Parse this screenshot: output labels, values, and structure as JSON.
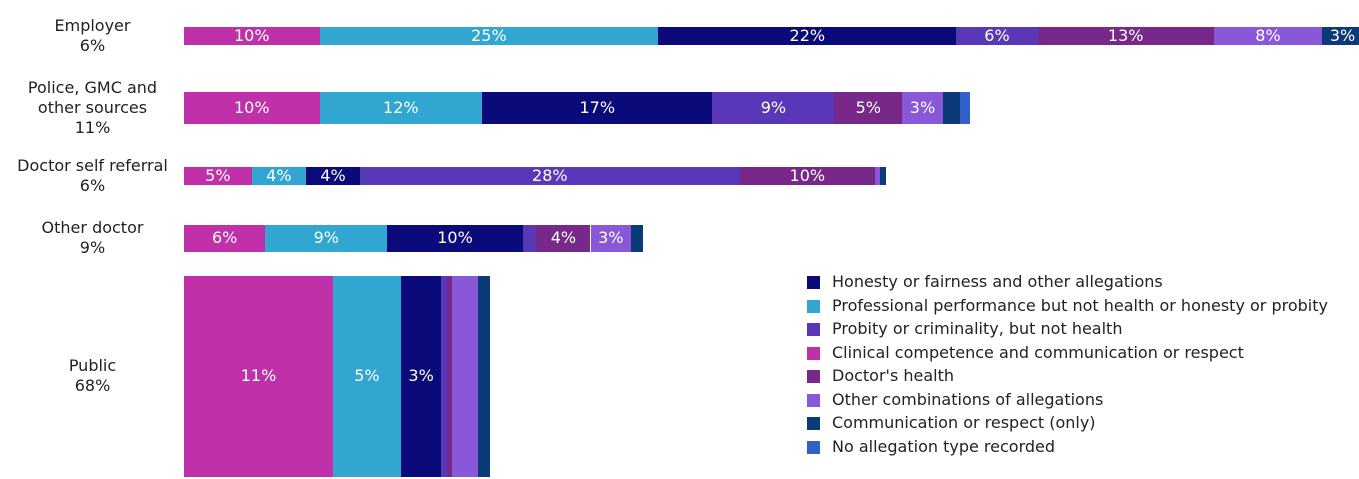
{
  "chart_data": {
    "type": "mekko_bar",
    "categories": [
      "Employer",
      "Police, GMC and other sources",
      "Doctor self referral",
      "Other doctor",
      "Public"
    ],
    "shares": [
      6,
      11,
      6,
      9,
      68
    ],
    "share_labels": [
      "6%",
      "11%",
      "6%",
      "9%",
      "68%"
    ],
    "series": [
      {
        "name": "Clinical competence and communication or respect",
        "color": "#c030a8",
        "values": [
          10,
          10,
          5,
          6,
          11
        ],
        "value_labels": [
          "10%",
          "10%",
          "5%",
          "6%",
          "11%"
        ]
      },
      {
        "name": "Professional performance but not health or honesty or probity",
        "color": "#30a6d0",
        "values": [
          25,
          12,
          4,
          9,
          5
        ],
        "value_labels": [
          "25%",
          "12%",
          "4%",
          "9%",
          "5%"
        ]
      },
      {
        "name": "Honesty or fairness and other allegations",
        "color": "#0a0a7a",
        "values": [
          22,
          17,
          4,
          10,
          3
        ],
        "value_labels": [
          "22%",
          "17%",
          "4%",
          "10%",
          "3%"
        ]
      },
      {
        "name": "Probity or criminality, but not health",
        "color": "#5838b8",
        "values": [
          6,
          9,
          28,
          1,
          0.4
        ],
        "value_labels": [
          "6%",
          "9%",
          "28%",
          null,
          null
        ]
      },
      {
        "name": "Doctor's health",
        "color": "#782888",
        "values": [
          13,
          5,
          10,
          4,
          0.4
        ],
        "value_labels": [
          "13%",
          "5%",
          "10%",
          "4%",
          null
        ]
      },
      {
        "name": "Other combinations of allegations",
        "color": "#8858d8",
        "values": [
          8,
          3,
          0.4,
          3,
          1.9
        ],
        "value_labels": [
          "8%",
          "3%",
          null,
          "3%",
          null
        ]
      },
      {
        "name": "Communication or respect (only)",
        "color": "#0a3a78",
        "values": [
          3,
          1.3,
          0.4,
          0.9,
          0.9
        ],
        "value_labels": [
          "3%",
          null,
          null,
          null,
          null
        ]
      },
      {
        "name": "No allegation type recorded",
        "color": "#3060c8",
        "values": [
          0,
          0.7,
          0,
          0,
          0
        ],
        "value_labels": [
          null,
          null,
          null,
          null,
          null
        ]
      }
    ],
    "legend_order": [
      2,
      1,
      3,
      0,
      4,
      5,
      6,
      7
    ]
  }
}
